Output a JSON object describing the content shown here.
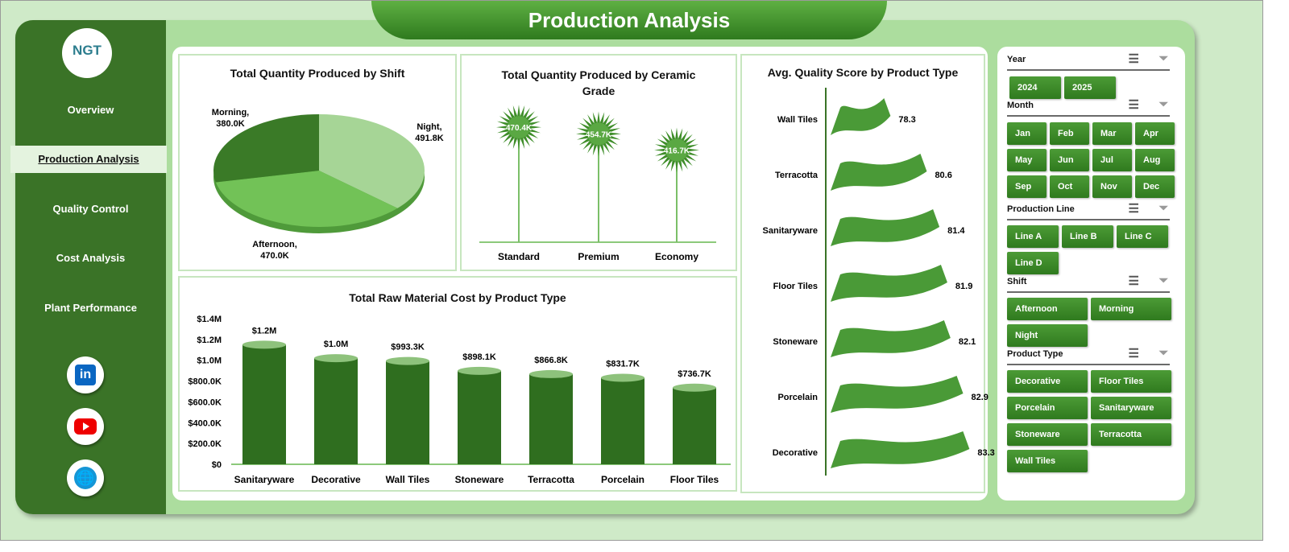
{
  "title": "Production Analysis",
  "sidebar": {
    "logo": "NGT",
    "items": [
      {
        "label": "Overview"
      },
      {
        "label": "Production Analysis",
        "active": true
      },
      {
        "label": "Quality Control"
      },
      {
        "label": "Cost Analysis"
      },
      {
        "label": "Plant Performance"
      }
    ],
    "social": [
      "linkedin-icon",
      "youtube-icon",
      "globe-icon"
    ]
  },
  "colors": {
    "dark_green": "#3a7327",
    "accent": "#4c9b36",
    "light": "#acdd9e"
  },
  "chart_data": [
    {
      "type": "pie",
      "title": "Total Quantity Produced by Shift",
      "slices": [
        {
          "name": "Night",
          "value": 491.8,
          "label": "Night,",
          "vlabel": "491.8K",
          "color": "#a6d596"
        },
        {
          "name": "Afternoon",
          "value": 470.0,
          "label": "Afternoon,",
          "vlabel": "470.0K",
          "color": "#72c257"
        },
        {
          "name": "Morning",
          "value": 380.0,
          "label": "Morning,",
          "vlabel": "380.0K",
          "color": "#3a7a27"
        }
      ],
      "unit": "K"
    },
    {
      "type": "lollipop",
      "title": "Total Quantity Produced by Ceramic Grade",
      "categories": [
        "Standard",
        "Premium",
        "Economy"
      ],
      "values": [
        470.4,
        454.7,
        416.7
      ],
      "labels": [
        "470.4K",
        "454.7K",
        "416.7K"
      ]
    },
    {
      "type": "bar",
      "title": "Total Raw Material Cost by Product Type",
      "categories": [
        "Sanitaryware",
        "Decorative",
        "Wall Tiles",
        "Stoneware",
        "Terracotta",
        "Porcelain",
        "Floor Tiles"
      ],
      "values": [
        1150000,
        1020000,
        993300,
        898100,
        866800,
        831700,
        736700
      ],
      "labels": [
        "$1.2M",
        "$1.0M",
        "$993.3K",
        "$898.1K",
        "$866.8K",
        "$831.7K",
        "$736.7K"
      ],
      "ylim": [
        0,
        1400000
      ],
      "yticks": [
        "$0",
        "$200.0K",
        "$400.0K",
        "$600.0K",
        "$800.0K",
        "$1.0M",
        "$1.2M",
        "$1.4M"
      ]
    },
    {
      "type": "bar-horizontal",
      "title": "Avg. Quality Score by Product Type",
      "categories": [
        "Wall Tiles",
        "Terracotta",
        "Sanitaryware",
        "Floor Tiles",
        "Stoneware",
        "Porcelain",
        "Decorative"
      ],
      "values": [
        78.3,
        80.6,
        81.4,
        81.9,
        82.1,
        82.9,
        83.3
      ],
      "labels": [
        "78.3",
        "80.6",
        "81.4",
        "81.9",
        "82.1",
        "82.9",
        "83.3"
      ]
    }
  ],
  "slicers": [
    {
      "title": "Year",
      "items": [
        "2024",
        "2025"
      ]
    },
    {
      "title": "Month",
      "items": [
        "Jan",
        "Feb",
        "Mar",
        "Apr",
        "May",
        "Jun",
        "Jul",
        "Aug",
        "Sep",
        "Oct",
        "Nov",
        "Dec"
      ]
    },
    {
      "title": "Production Line",
      "items": [
        "Line A",
        "Line B",
        "Line C",
        "Line D"
      ]
    },
    {
      "title": "Shift",
      "items": [
        "Afternoon",
        "Morning",
        "Night"
      ]
    },
    {
      "title": "Product Type",
      "items": [
        "Decorative",
        "Floor Tiles",
        "Porcelain",
        "Sanitaryware",
        "Stoneware",
        "Terracotta",
        "Wall Tiles"
      ]
    }
  ]
}
